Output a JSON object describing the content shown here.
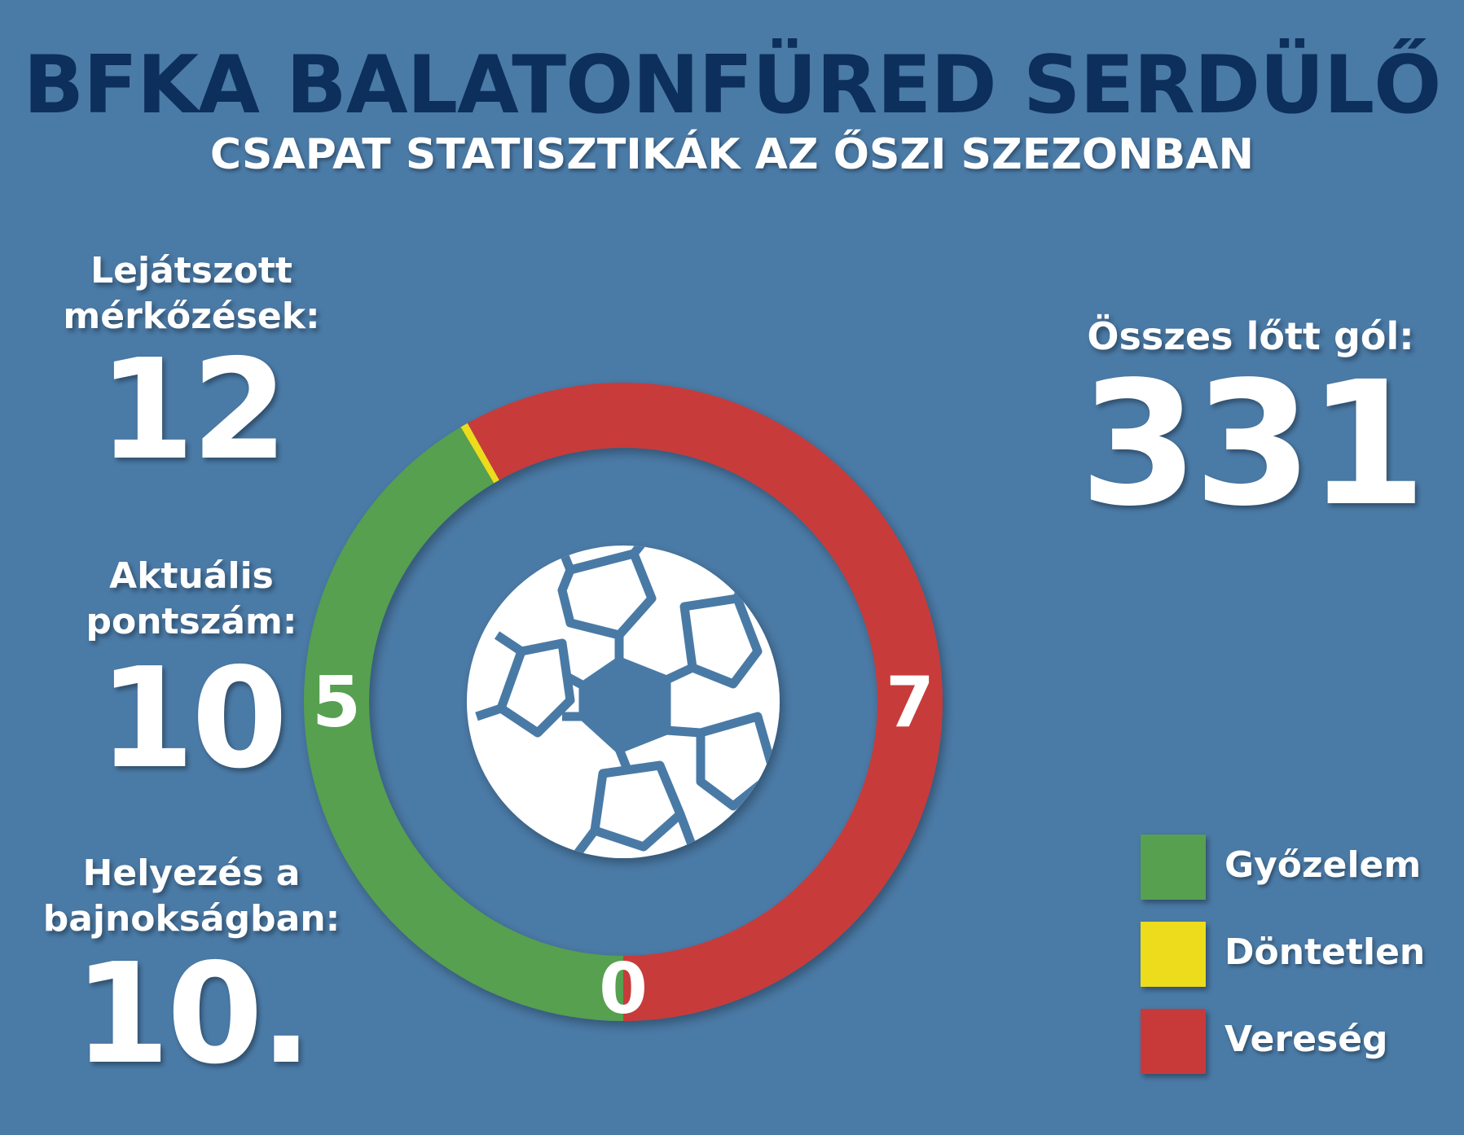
{
  "header": {
    "title": "BFKA BALATONFÜRED SERDÜLŐ",
    "subtitle": "CSAPAT STATISZTIKÁK AZ ŐSZI SZEZONBAN"
  },
  "stats": {
    "matches": {
      "label": "Lejátszott\nmérkőzések:",
      "value": "12"
    },
    "points": {
      "label": "Aktuális\npontszám:",
      "value": "10"
    },
    "rank": {
      "label": "Helyezés a\nbajnokságban:",
      "value": "10."
    },
    "goals": {
      "label": "Összes lőtt gól:",
      "value": "331"
    }
  },
  "chart_data": {
    "type": "pie",
    "variant": "donut",
    "categories": [
      "Győzelem",
      "Döntetlen",
      "Vereség"
    ],
    "values": [
      5,
      0,
      7
    ],
    "colors": [
      "#57a050",
      "#ecdc1c",
      "#c83a3a"
    ],
    "data_labels": [
      "5",
      "0",
      "7"
    ],
    "center_icon": "soccer-ball-icon",
    "legend_position": "bottom-right"
  }
}
